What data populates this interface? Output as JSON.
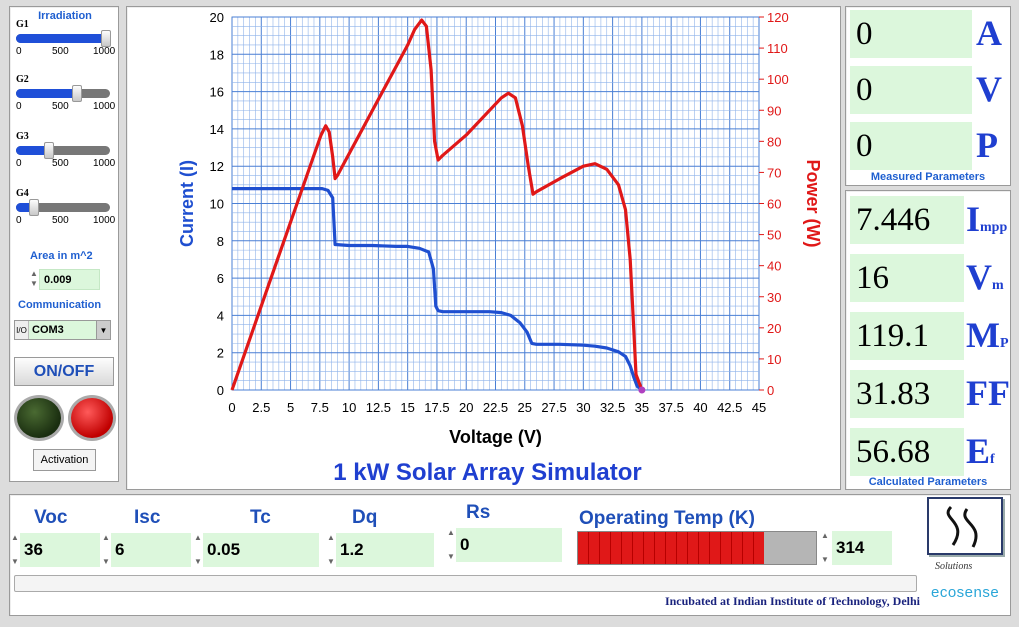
{
  "left": {
    "irradiation_title": "Irradiation",
    "sliders": [
      {
        "name": "G1",
        "ticks": [
          "0",
          "500",
          "1000"
        ],
        "fraction": 1.0
      },
      {
        "name": "G2",
        "ticks": [
          "0",
          "500",
          "1000"
        ],
        "fraction": 0.68
      },
      {
        "name": "G3",
        "ticks": [
          "0",
          "500",
          "1000"
        ],
        "fraction": 0.37
      },
      {
        "name": "G4",
        "ticks": [
          "0",
          "500",
          "1000"
        ],
        "fraction": 0.2
      }
    ],
    "area_label": "Area in m^2",
    "area_value": "0.009",
    "communication_label": "Communication",
    "com_port": "COM3",
    "io_icon": "I/O",
    "onoff_label": "ON/OFF",
    "activation_label": "Activation",
    "led_colors": {
      "left": "#2e4a1c",
      "right": "#e01010"
    }
  },
  "chart_data": {
    "type": "line",
    "title": "1 kW Solar Array Simulator",
    "xlabel": "Voltage (V)",
    "ylabel_left": "Current (I)",
    "ylabel_right": "Power (W)",
    "xlim": [
      0,
      45
    ],
    "ylim_left": [
      0,
      20
    ],
    "ylim_right": [
      0,
      120
    ],
    "x_ticks": [
      "0",
      "2.5",
      "5",
      "7.5",
      "10",
      "12.5",
      "15",
      "17.5",
      "20",
      "22.5",
      "25",
      "27.5",
      "30",
      "32.5",
      "35",
      "37.5",
      "40",
      "42.5",
      "45"
    ],
    "y_left_ticks": [
      "0",
      "2",
      "4",
      "6",
      "8",
      "10",
      "12",
      "14",
      "16",
      "18",
      "20"
    ],
    "y_right_ticks": [
      "0",
      "10",
      "20",
      "30",
      "40",
      "50",
      "60",
      "70",
      "80",
      "90",
      "100",
      "110",
      "120"
    ],
    "grid": true,
    "series": [
      {
        "name": "Current (I)",
        "axis": "left",
        "color": "#1f4fd0",
        "x": [
          0,
          2,
          4,
          6,
          7,
          7.7,
          8.2,
          8.6,
          8.8,
          10,
          12,
          14,
          15,
          16,
          16.8,
          17.2,
          17.4,
          17.6,
          18,
          20,
          22,
          23,
          23.8,
          24.6,
          25.2,
          25.6,
          26,
          28,
          30,
          31,
          32,
          33,
          33.6,
          34,
          34.3,
          34.6,
          35
        ],
        "y": [
          10.8,
          10.8,
          10.8,
          10.8,
          10.8,
          10.8,
          10.7,
          10.3,
          7.8,
          7.75,
          7.75,
          7.7,
          7.7,
          7.6,
          7.4,
          6.5,
          4.5,
          4.25,
          4.2,
          4.2,
          4.2,
          4.15,
          4.0,
          3.6,
          3.1,
          2.5,
          2.45,
          2.45,
          2.4,
          2.35,
          2.25,
          2.05,
          1.8,
          1.3,
          0.7,
          0.2,
          0
        ]
      },
      {
        "name": "Power (W)",
        "axis": "right",
        "color": "#e01818",
        "x": [
          0,
          2,
          4,
          6,
          7,
          7.6,
          8.0,
          8.3,
          8.6,
          8.8,
          9,
          10,
          12,
          14,
          15,
          15.6,
          16.2,
          16.6,
          17.0,
          17.3,
          17.6,
          18,
          20,
          22,
          23,
          23.6,
          24.2,
          24.8,
          25.3,
          25.7,
          26,
          28,
          30,
          31,
          32,
          33,
          33.6,
          34.0,
          34.3,
          34.5,
          35
        ],
        "y": [
          0,
          21.6,
          43.2,
          64.8,
          75.6,
          82,
          85,
          83,
          75,
          68,
          69,
          76,
          90,
          104,
          111,
          116,
          119,
          117,
          103,
          80,
          74,
          75.5,
          82,
          90,
          94,
          95.5,
          94,
          85,
          72,
          63,
          63.8,
          68,
          72,
          72.8,
          71,
          66,
          58,
          42,
          20,
          5,
          0
        ]
      }
    ]
  },
  "measured": {
    "fields": [
      {
        "value": "0",
        "unit": "A"
      },
      {
        "value": "0",
        "unit": "V"
      },
      {
        "value": "0",
        "unit": "P"
      }
    ],
    "caption": "Measured Parameters"
  },
  "calculated": {
    "fields": [
      {
        "value": "7.446",
        "unit_main": "I",
        "unit_sub": "mpp"
      },
      {
        "value": "16",
        "unit_main": "V",
        "unit_sub": "m"
      },
      {
        "value": "119.1",
        "unit_main": "M",
        "unit_sub": "P"
      },
      {
        "value": "31.83",
        "unit_main": "FF",
        "unit_sub": ""
      },
      {
        "value": "56.68",
        "unit_main": "E",
        "unit_sub": "f"
      }
    ],
    "caption": "Calculated Parameters"
  },
  "bottom": {
    "params": [
      {
        "label": "Voc",
        "value": "36"
      },
      {
        "label": "Isc",
        "value": "6"
      },
      {
        "label": "Tc",
        "value": "0.05"
      },
      {
        "label": "Dq",
        "value": "1.2"
      },
      {
        "label": "Rs",
        "value": "0"
      }
    ],
    "temp_label": "Operating Temp (K)",
    "temp_value": "314",
    "temp_fraction": 0.78,
    "footer": "Incubated at Indian Institute of Technology, Delhi",
    "logo_brand": "ecosense",
    "logo_sub": "Solutions"
  }
}
